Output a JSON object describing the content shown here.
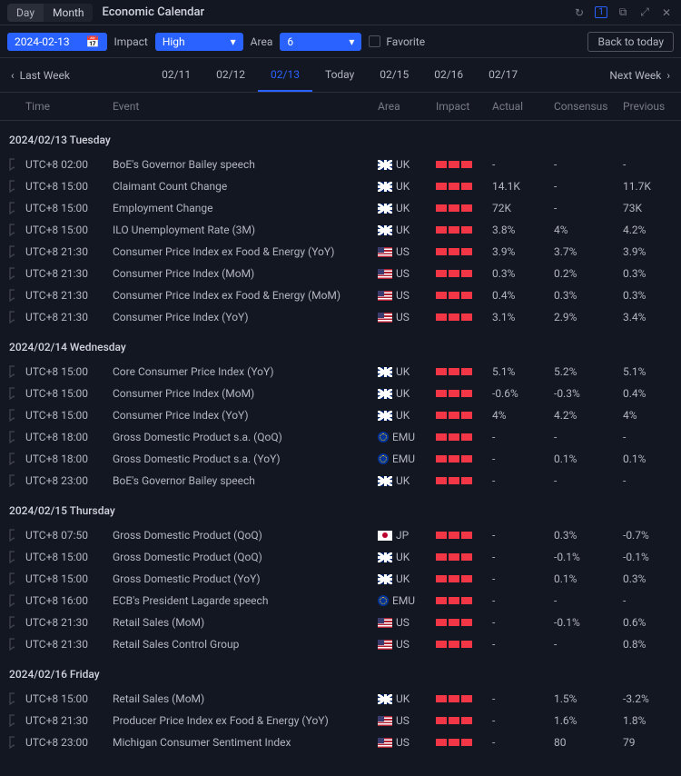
{
  "titlebar": {
    "tab_day": "Day",
    "tab_month": "Month",
    "active_tab": "month",
    "title": "Economic Calendar",
    "badge": "1"
  },
  "toolbar": {
    "date_value": "2024-02-13",
    "impact_label": "Impact",
    "impact_value": "High",
    "area_label": "Area",
    "area_value": "6",
    "favorite_label": "Favorite",
    "back_today": "Back to today"
  },
  "nav": {
    "last_week": "Last Week",
    "next_week": "Next Week",
    "tabs": [
      {
        "label": "02/11",
        "active": false
      },
      {
        "label": "02/12",
        "active": false
      },
      {
        "label": "02/13",
        "active": true
      },
      {
        "label": "Today",
        "active": false
      },
      {
        "label": "02/15",
        "active": false
      },
      {
        "label": "02/16",
        "active": false
      },
      {
        "label": "02/17",
        "active": false
      }
    ]
  },
  "columns": {
    "time": "Time",
    "event": "Event",
    "area": "Area",
    "impact": "Impact",
    "actual": "Actual",
    "consensus": "Consensus",
    "previous": "Previous"
  },
  "days": [
    {
      "header": "2024/02/13 Tuesday",
      "events": [
        {
          "time": "UTC+8 02:00",
          "event": "BoE's Governor Bailey speech",
          "area": "UK",
          "flag": "uk",
          "actual": "-",
          "consensus": "-",
          "previous": "-"
        },
        {
          "time": "UTC+8 15:00",
          "event": "Claimant Count Change",
          "area": "UK",
          "flag": "uk",
          "actual": "14.1K",
          "consensus": "-",
          "previous": "11.7K"
        },
        {
          "time": "UTC+8 15:00",
          "event": "Employment Change",
          "area": "UK",
          "flag": "uk",
          "actual": "72K",
          "consensus": "-",
          "previous": "73K"
        },
        {
          "time": "UTC+8 15:00",
          "event": "ILO Unemployment Rate (3M)",
          "area": "UK",
          "flag": "uk",
          "actual": "3.8%",
          "consensus": "4%",
          "previous": "4.2%"
        },
        {
          "time": "UTC+8 21:30",
          "event": "Consumer Price Index ex Food & Energy (YoY)",
          "area": "US",
          "flag": "us",
          "actual": "3.9%",
          "consensus": "3.7%",
          "previous": "3.9%"
        },
        {
          "time": "UTC+8 21:30",
          "event": "Consumer Price Index (MoM)",
          "area": "US",
          "flag": "us",
          "actual": "0.3%",
          "consensus": "0.2%",
          "previous": "0.3%"
        },
        {
          "time": "UTC+8 21:30",
          "event": "Consumer Price Index ex Food & Energy (MoM)",
          "area": "US",
          "flag": "us",
          "actual": "0.4%",
          "consensus": "0.3%",
          "previous": "0.3%"
        },
        {
          "time": "UTC+8 21:30",
          "event": "Consumer Price Index (YoY)",
          "area": "US",
          "flag": "us",
          "actual": "3.1%",
          "consensus": "2.9%",
          "previous": "3.4%"
        }
      ]
    },
    {
      "header": "2024/02/14 Wednesday",
      "events": [
        {
          "time": "UTC+8 15:00",
          "event": "Core Consumer Price Index (YoY)",
          "area": "UK",
          "flag": "uk",
          "actual": "5.1%",
          "consensus": "5.2%",
          "previous": "5.1%"
        },
        {
          "time": "UTC+8 15:00",
          "event": "Consumer Price Index (MoM)",
          "area": "UK",
          "flag": "uk",
          "actual": "-0.6%",
          "consensus": "-0.3%",
          "previous": "0.4%"
        },
        {
          "time": "UTC+8 15:00",
          "event": "Consumer Price Index (YoY)",
          "area": "UK",
          "flag": "uk",
          "actual": "4%",
          "consensus": "4.2%",
          "previous": "4%"
        },
        {
          "time": "UTC+8 18:00",
          "event": "Gross Domestic Product s.a. (QoQ)",
          "area": "EMU",
          "flag": "emu",
          "actual": "-",
          "consensus": "-",
          "previous": "-"
        },
        {
          "time": "UTC+8 18:00",
          "event": "Gross Domestic Product s.a. (YoY)",
          "area": "EMU",
          "flag": "emu",
          "actual": "-",
          "consensus": "0.1%",
          "previous": "0.1%"
        },
        {
          "time": "UTC+8 23:00",
          "event": "BoE's Governor Bailey speech",
          "area": "UK",
          "flag": "uk",
          "actual": "-",
          "consensus": "-",
          "previous": "-"
        }
      ]
    },
    {
      "header": "2024/02/15 Thursday",
      "events": [
        {
          "time": "UTC+8 07:50",
          "event": "Gross Domestic Product (QoQ)",
          "area": "JP",
          "flag": "jp",
          "actual": "-",
          "consensus": "0.3%",
          "previous": "-0.7%"
        },
        {
          "time": "UTC+8 15:00",
          "event": "Gross Domestic Product (QoQ)",
          "area": "UK",
          "flag": "uk",
          "actual": "-",
          "consensus": "-0.1%",
          "previous": "-0.1%"
        },
        {
          "time": "UTC+8 15:00",
          "event": "Gross Domestic Product (YoY)",
          "area": "UK",
          "flag": "uk",
          "actual": "-",
          "consensus": "0.1%",
          "previous": "0.3%"
        },
        {
          "time": "UTC+8 16:00",
          "event": "ECB's President Lagarde speech",
          "area": "EMU",
          "flag": "emu",
          "actual": "-",
          "consensus": "-",
          "previous": "-"
        },
        {
          "time": "UTC+8 21:30",
          "event": "Retail Sales (MoM)",
          "area": "US",
          "flag": "us",
          "actual": "-",
          "consensus": "-0.1%",
          "previous": "0.6%"
        },
        {
          "time": "UTC+8 21:30",
          "event": "Retail Sales Control Group",
          "area": "US",
          "flag": "us",
          "actual": "-",
          "consensus": "-",
          "previous": "0.8%"
        }
      ]
    },
    {
      "header": "2024/02/16 Friday",
      "events": [
        {
          "time": "UTC+8 15:00",
          "event": "Retail Sales (MoM)",
          "area": "UK",
          "flag": "uk",
          "actual": "-",
          "consensus": "1.5%",
          "previous": "-3.2%"
        },
        {
          "time": "UTC+8 21:30",
          "event": "Producer Price Index ex Food & Energy (YoY)",
          "area": "US",
          "flag": "us",
          "actual": "-",
          "consensus": "1.6%",
          "previous": "1.8%"
        },
        {
          "time": "UTC+8 23:00",
          "event": "Michigan Consumer Sentiment Index",
          "area": "US",
          "flag": "us",
          "actual": "-",
          "consensus": "80",
          "previous": "79"
        }
      ]
    }
  ]
}
